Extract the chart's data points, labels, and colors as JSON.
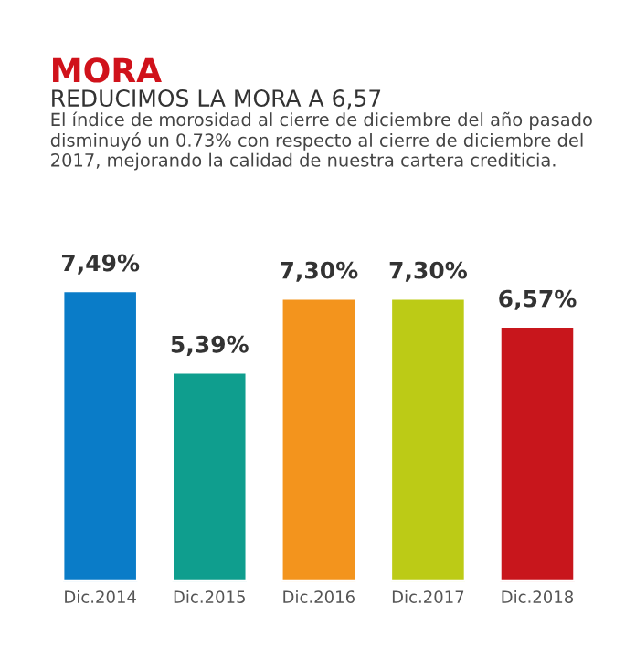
{
  "chart_data": {
    "type": "bar",
    "title": "MORA",
    "subtitle": "REDUCIMOS LA MORA A 6,57",
    "annotations": [
      "El índice de morosidad al cierre de diciembre del año pasado disminuyó un 0.73% con respecto al cierre de diciembre del 2017, mejorando la calidad de nuestra cartera crediticia."
    ],
    "categories": [
      "Dic.2014",
      "Dic.2015",
      "Dic.2016",
      "Dic.2017",
      "Dic.2018"
    ],
    "values": [
      7.49,
      5.39,
      7.3,
      7.3,
      6.57
    ],
    "colors": [
      "#0a7cc8",
      "#0f9e8e",
      "#f3941d",
      "#bccb16",
      "#c8161c"
    ],
    "value_labels": [
      "7,49%",
      "5,39%",
      "7,30%",
      "7,30%",
      "6,57%"
    ],
    "tick_labels": "x",
    "grid": false,
    "legend": false
  }
}
